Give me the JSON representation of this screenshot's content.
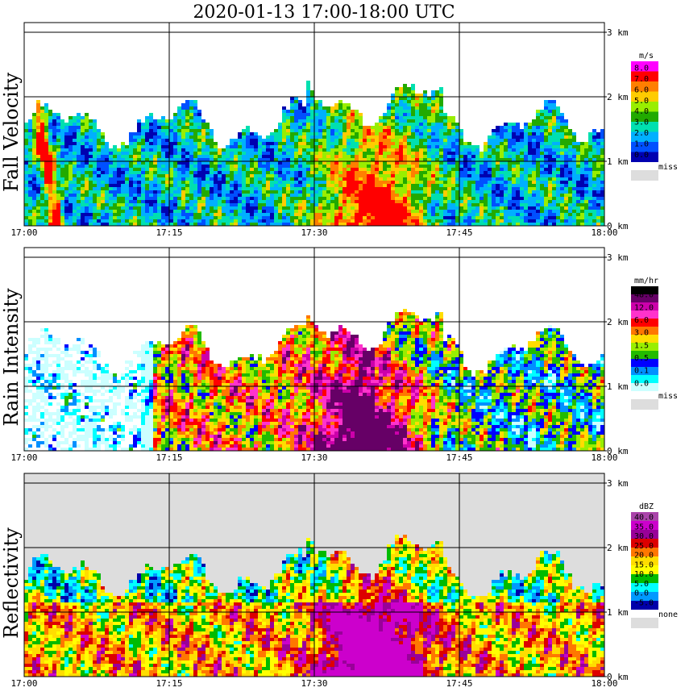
{
  "title": "2020-01-13   17:00-18:00 UTC",
  "time_ticks": [
    "17:00",
    "17:15",
    "17:30",
    "17:45",
    "18:00"
  ],
  "height_ticks": [
    "0 km",
    "1 km",
    "2 km",
    "3 km"
  ],
  "chart_data": [
    {
      "type": "heatmap",
      "ylabel": "Fall Velocity",
      "unit": "m/s",
      "x_range": [
        "17:00",
        "18:00"
      ],
      "y_range_km": [
        0,
        3
      ],
      "legend_labels": [
        "8.0",
        "7.0",
        "6.0",
        "5.0",
        "4.0",
        "3.0",
        "2.0",
        "1.0",
        "0.0"
      ],
      "legend_colors": [
        "#ff00ff",
        "#ff0000",
        "#ff7f00",
        "#ffcc00",
        "#99ee00",
        "#22aa00",
        "#00e0b0",
        "#00b0ff",
        "#0050ff",
        "#0000b0"
      ],
      "missing_label": "miss",
      "missing_color": "#dddddd",
      "grid": true
    },
    {
      "type": "heatmap",
      "ylabel": "Rain Intensity",
      "unit": "mm/hr",
      "x_range": [
        "17:00",
        "18:00"
      ],
      "y_range_km": [
        0,
        3
      ],
      "legend_labels": [
        "48.0",
        "12.0",
        "6.0",
        "3.0",
        "1.5",
        "0.5",
        "0.1",
        "0.0"
      ],
      "legend_colors": [
        "#000000",
        "#660066",
        "#cc00aa",
        "#ff33cc",
        "#ff0000",
        "#ff7700",
        "#ffdd00",
        "#99ee00",
        "#22bb00",
        "#0000ff",
        "#0090ff",
        "#00ffff",
        "#ccffff"
      ],
      "missing_label": "miss",
      "missing_color": "#dddddd",
      "grid": true
    },
    {
      "type": "heatmap",
      "ylabel": "Reflectivity",
      "unit": "dBZ",
      "x_range": [
        "17:00",
        "18:00"
      ],
      "y_range_km": [
        0,
        3
      ],
      "legend_labels": [
        "40.0",
        "35.0",
        "30.0",
        "25.0",
        "20.0",
        "15.0",
        "10.0",
        "5.0",
        "0.0",
        "-5.0"
      ],
      "legend_colors": [
        "#aa44aa",
        "#cc00cc",
        "#990099",
        "#dd0000",
        "#ff7700",
        "#ffdd00",
        "#ffff00",
        "#00bb00",
        "#00ffff",
        "#0099ff",
        "#0000aa"
      ],
      "missing_label": "none",
      "missing_color": "#dddddd",
      "grid": true
    }
  ]
}
